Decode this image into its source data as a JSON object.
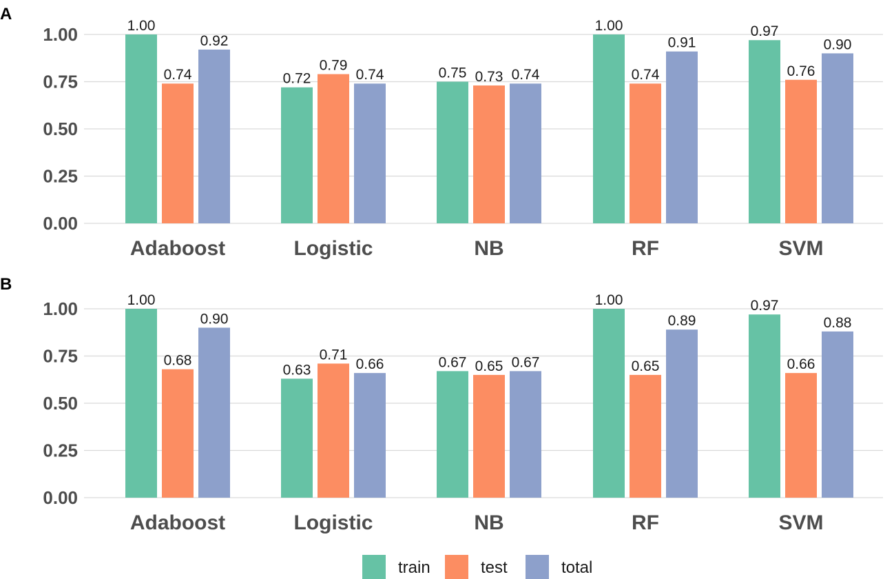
{
  "colors": {
    "train": "#66c2a5",
    "test": "#fc8d62",
    "total": "#8da0cb"
  },
  "legend": [
    {
      "key": "train",
      "label": "train"
    },
    {
      "key": "test",
      "label": "test"
    },
    {
      "key": "total",
      "label": "total"
    }
  ],
  "chart_data": [
    {
      "type": "bar",
      "panel": "A",
      "categories": [
        "Adaboost",
        "Logistic",
        "NB",
        "RF",
        "SVM"
      ],
      "series": [
        {
          "name": "train",
          "values": [
            1.0,
            0.72,
            0.75,
            1.0,
            0.97
          ]
        },
        {
          "name": "test",
          "values": [
            0.74,
            0.79,
            0.73,
            0.74,
            0.76
          ]
        },
        {
          "name": "total",
          "values": [
            0.92,
            0.74,
            0.74,
            0.91,
            0.9
          ]
        }
      ],
      "labels": {
        "train": [
          "1.00",
          "0.72",
          "0.75",
          "1.00",
          "0.97"
        ],
        "test": [
          "0.74",
          "0.79",
          "0.73",
          "0.74",
          "0.76"
        ],
        "total": [
          "0.92",
          "0.74",
          "0.74",
          "0.91",
          "0.90"
        ]
      },
      "ylim": [
        0,
        1
      ],
      "yticks": [
        "0.00",
        "0.25",
        "0.50",
        "0.75",
        "1.00"
      ],
      "grid": true,
      "legend_position": "bottom"
    },
    {
      "type": "bar",
      "panel": "B",
      "categories": [
        "Adaboost",
        "Logistic",
        "NB",
        "RF",
        "SVM"
      ],
      "series": [
        {
          "name": "train",
          "values": [
            1.0,
            0.63,
            0.67,
            1.0,
            0.97
          ]
        },
        {
          "name": "test",
          "values": [
            0.68,
            0.71,
            0.65,
            0.65,
            0.66
          ]
        },
        {
          "name": "total",
          "values": [
            0.9,
            0.66,
            0.67,
            0.89,
            0.88
          ]
        }
      ],
      "labels": {
        "train": [
          "1.00",
          "0.63",
          "0.67",
          "1.00",
          "0.97"
        ],
        "test": [
          "0.68",
          "0.71",
          "0.65",
          "0.65",
          "0.66"
        ],
        "total": [
          "0.90",
          "0.66",
          "0.67",
          "0.89",
          "0.88"
        ]
      },
      "ylim": [
        0,
        1
      ],
      "yticks": [
        "0.00",
        "0.25",
        "0.50",
        "0.75",
        "1.00"
      ],
      "grid": true,
      "legend_position": "bottom"
    }
  ]
}
